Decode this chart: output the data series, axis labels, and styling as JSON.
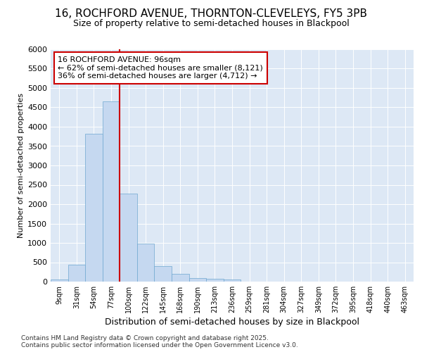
{
  "title_line1": "16, ROCHFORD AVENUE, THORNTON-CLEVELEYS, FY5 3PB",
  "title_line2": "Size of property relative to semi-detached houses in Blackpool",
  "xlabel": "Distribution of semi-detached houses by size in Blackpool",
  "ylabel": "Number of semi-detached properties",
  "footnote": "Contains HM Land Registry data © Crown copyright and database right 2025.\nContains public sector information licensed under the Open Government Licence v3.0.",
  "bin_labels": [
    "9sqm",
    "31sqm",
    "54sqm",
    "77sqm",
    "100sqm",
    "122sqm",
    "145sqm",
    "168sqm",
    "190sqm",
    "213sqm",
    "236sqm",
    "259sqm",
    "281sqm",
    "304sqm",
    "327sqm",
    "349sqm",
    "372sqm",
    "395sqm",
    "418sqm",
    "440sqm",
    "463sqm"
  ],
  "bar_values": [
    50,
    430,
    3820,
    4650,
    2280,
    980,
    400,
    200,
    90,
    80,
    60,
    0,
    0,
    0,
    0,
    0,
    0,
    0,
    0,
    0,
    0
  ],
  "bar_color": "#c5d8f0",
  "bar_edge_color": "#6fa8d0",
  "red_line_bin_index": 4,
  "annotation_title": "16 ROCHFORD AVENUE: 96sqm",
  "annotation_line1": "← 62% of semi-detached houses are smaller (8,121)",
  "annotation_line2": "36% of semi-detached houses are larger (4,712) →",
  "ylim": [
    0,
    6000
  ],
  "yticks": [
    0,
    500,
    1000,
    1500,
    2000,
    2500,
    3000,
    3500,
    4000,
    4500,
    5000,
    5500,
    6000
  ],
  "background_color": "#dde8f5",
  "grid_color": "#ffffff",
  "annotation_box_bg": "#ffffff",
  "annotation_box_edge": "#cc0000",
  "red_line_color": "#cc0000",
  "title1_fontsize": 11,
  "title2_fontsize": 9,
  "ylabel_fontsize": 8,
  "xlabel_fontsize": 9,
  "tick_fontsize": 8,
  "xtick_fontsize": 7,
  "annot_fontsize": 8,
  "footnote_fontsize": 6.5
}
